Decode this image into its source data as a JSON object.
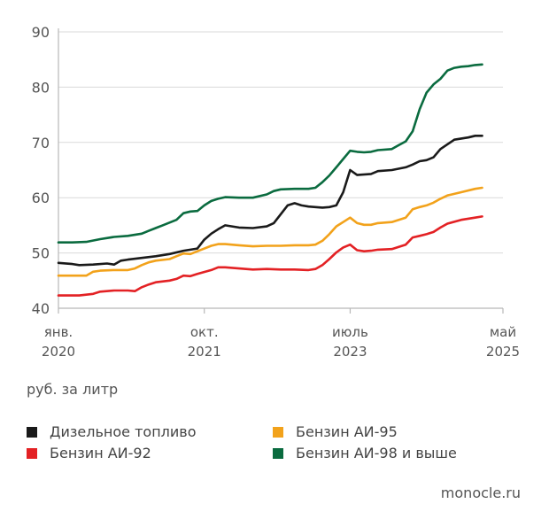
{
  "chart_data": {
    "type": "line",
    "y_ticks": [
      40,
      50,
      60,
      70,
      80,
      90
    ],
    "ylim": [
      40,
      90
    ],
    "x_tick_labels": [
      {
        "line1": "янв.",
        "line2": "2020",
        "t": 0
      },
      {
        "line1": "окт.",
        "line2": "2021",
        "t": 21
      },
      {
        "line1": "июль",
        "line2": "2023",
        "t": 42
      },
      {
        "line1": "май",
        "line2": "2025",
        "t": 64
      }
    ],
    "xlim": [
      0,
      64
    ],
    "ylabel": "руб. за литр",
    "grid": "horizontal",
    "series": [
      {
        "name": "Дизельное топливо",
        "color": "#1a1a1a",
        "points": [
          [
            0,
            48.2
          ],
          [
            2,
            48.0
          ],
          [
            3,
            47.8
          ],
          [
            5,
            47.9
          ],
          [
            7,
            48.1
          ],
          [
            8,
            47.9
          ],
          [
            9,
            48.6
          ],
          [
            10,
            48.8
          ],
          [
            12,
            49.1
          ],
          [
            14,
            49.4
          ],
          [
            16,
            49.8
          ],
          [
            18,
            50.4
          ],
          [
            20,
            50.8
          ],
          [
            21,
            52.4
          ],
          [
            22,
            53.5
          ],
          [
            23,
            54.3
          ],
          [
            24,
            55.0
          ],
          [
            25,
            54.8
          ],
          [
            26,
            54.6
          ],
          [
            28,
            54.5
          ],
          [
            30,
            54.8
          ],
          [
            31,
            55.4
          ],
          [
            32,
            57.0
          ],
          [
            33,
            58.6
          ],
          [
            34,
            59.0
          ],
          [
            35,
            58.6
          ],
          [
            36,
            58.4
          ],
          [
            37,
            58.3
          ],
          [
            38,
            58.2
          ],
          [
            39,
            58.3
          ],
          [
            40,
            58.6
          ],
          [
            41,
            61.0
          ],
          [
            42,
            65.0
          ],
          [
            43,
            64.1
          ],
          [
            45,
            64.3
          ],
          [
            46,
            64.8
          ],
          [
            48,
            65.0
          ],
          [
            50,
            65.5
          ],
          [
            51,
            66.0
          ],
          [
            52,
            66.6
          ],
          [
            53,
            66.8
          ],
          [
            54,
            67.3
          ],
          [
            55,
            68.8
          ],
          [
            57,
            70.5
          ],
          [
            59,
            70.9
          ],
          [
            60,
            71.2
          ],
          [
            61,
            71.2
          ]
        ]
      },
      {
        "name": "Бензин АИ-92",
        "color": "#e32124",
        "points": [
          [
            0,
            42.3
          ],
          [
            3,
            42.3
          ],
          [
            5,
            42.6
          ],
          [
            6,
            43.0
          ],
          [
            8,
            43.2
          ],
          [
            10,
            43.2
          ],
          [
            11,
            43.1
          ],
          [
            12,
            43.8
          ],
          [
            13,
            44.3
          ],
          [
            14,
            44.7
          ],
          [
            16,
            45.0
          ],
          [
            17,
            45.3
          ],
          [
            18,
            45.9
          ],
          [
            19,
            45.8
          ],
          [
            20,
            46.2
          ],
          [
            22,
            46.9
          ],
          [
            23,
            47.4
          ],
          [
            24,
            47.4
          ],
          [
            26,
            47.2
          ],
          [
            28,
            47.0
          ],
          [
            30,
            47.1
          ],
          [
            32,
            47.0
          ],
          [
            34,
            47.0
          ],
          [
            36,
            46.9
          ],
          [
            37,
            47.1
          ],
          [
            38,
            47.8
          ],
          [
            39,
            48.9
          ],
          [
            40,
            50.1
          ],
          [
            41,
            51.0
          ],
          [
            42,
            51.5
          ],
          [
            43,
            50.5
          ],
          [
            44,
            50.3
          ],
          [
            45,
            50.4
          ],
          [
            46,
            50.6
          ],
          [
            48,
            50.7
          ],
          [
            50,
            51.5
          ],
          [
            51,
            52.8
          ],
          [
            52,
            53.1
          ],
          [
            53,
            53.4
          ],
          [
            54,
            53.8
          ],
          [
            55,
            54.6
          ],
          [
            56,
            55.3
          ],
          [
            58,
            56.0
          ],
          [
            60,
            56.4
          ],
          [
            61,
            56.6
          ]
        ]
      },
      {
        "name": "Бензин АИ-95",
        "color": "#f2a21b",
        "points": [
          [
            0,
            45.9
          ],
          [
            2,
            45.9
          ],
          [
            4,
            45.9
          ],
          [
            5,
            46.6
          ],
          [
            6,
            46.8
          ],
          [
            8,
            46.9
          ],
          [
            10,
            46.9
          ],
          [
            11,
            47.2
          ],
          [
            12,
            47.8
          ],
          [
            13,
            48.3
          ],
          [
            14,
            48.6
          ],
          [
            16,
            48.9
          ],
          [
            17,
            49.4
          ],
          [
            18,
            49.9
          ],
          [
            19,
            49.8
          ],
          [
            20,
            50.3
          ],
          [
            22,
            51.3
          ],
          [
            23,
            51.6
          ],
          [
            24,
            51.6
          ],
          [
            26,
            51.4
          ],
          [
            28,
            51.2
          ],
          [
            30,
            51.3
          ],
          [
            32,
            51.3
          ],
          [
            34,
            51.4
          ],
          [
            36,
            51.4
          ],
          [
            37,
            51.5
          ],
          [
            38,
            52.2
          ],
          [
            39,
            53.4
          ],
          [
            40,
            54.8
          ],
          [
            41,
            55.6
          ],
          [
            42,
            56.4
          ],
          [
            43,
            55.4
          ],
          [
            44,
            55.1
          ],
          [
            45,
            55.1
          ],
          [
            46,
            55.4
          ],
          [
            48,
            55.6
          ],
          [
            50,
            56.4
          ],
          [
            51,
            57.9
          ],
          [
            52,
            58.3
          ],
          [
            53,
            58.6
          ],
          [
            54,
            59.1
          ],
          [
            55,
            59.8
          ],
          [
            56,
            60.4
          ],
          [
            58,
            61.0
          ],
          [
            60,
            61.6
          ],
          [
            61,
            61.8
          ]
        ]
      },
      {
        "name": "Бензин АИ-98 и выше",
        "color": "#0a6b3f",
        "points": [
          [
            0,
            51.9
          ],
          [
            2,
            51.9
          ],
          [
            4,
            52.0
          ],
          [
            6,
            52.5
          ],
          [
            8,
            52.9
          ],
          [
            10,
            53.1
          ],
          [
            12,
            53.5
          ],
          [
            13,
            54.0
          ],
          [
            14,
            54.5
          ],
          [
            15,
            55.0
          ],
          [
            16,
            55.5
          ],
          [
            17,
            56.0
          ],
          [
            18,
            57.2
          ],
          [
            19,
            57.5
          ],
          [
            20,
            57.6
          ],
          [
            21,
            58.6
          ],
          [
            22,
            59.4
          ],
          [
            23,
            59.8
          ],
          [
            24,
            60.1
          ],
          [
            26,
            60.0
          ],
          [
            28,
            60.0
          ],
          [
            30,
            60.6
          ],
          [
            31,
            61.2
          ],
          [
            32,
            61.5
          ],
          [
            34,
            61.6
          ],
          [
            36,
            61.6
          ],
          [
            37,
            61.8
          ],
          [
            38,
            62.8
          ],
          [
            39,
            64.0
          ],
          [
            40,
            65.5
          ],
          [
            41,
            67.0
          ],
          [
            42,
            68.5
          ],
          [
            43,
            68.3
          ],
          [
            44,
            68.2
          ],
          [
            45,
            68.3
          ],
          [
            46,
            68.6
          ],
          [
            48,
            68.8
          ],
          [
            49,
            69.5
          ],
          [
            50,
            70.2
          ],
          [
            51,
            72.0
          ],
          [
            52,
            76.0
          ],
          [
            53,
            79.0
          ],
          [
            54,
            80.5
          ],
          [
            55,
            81.5
          ],
          [
            56,
            83.0
          ],
          [
            57,
            83.5
          ],
          [
            58,
            83.7
          ],
          [
            59,
            83.8
          ],
          [
            60,
            84.0
          ],
          [
            61,
            84.1
          ]
        ]
      }
    ]
  },
  "legend": {
    "items": [
      {
        "label": "Дизельное топливо",
        "color": "#1a1a1a"
      },
      {
        "label": "Бензин АИ-92",
        "color": "#e32124"
      },
      {
        "label": "Бензин АИ-95",
        "color": "#f2a21b"
      },
      {
        "label": "Бензин АИ-98 и выше",
        "color": "#0a6b3f"
      }
    ]
  },
  "source": "monocle.ru",
  "colors": {
    "axis": "#b8b8b8",
    "grid": "#d9d9d9",
    "text": "#555555"
  }
}
